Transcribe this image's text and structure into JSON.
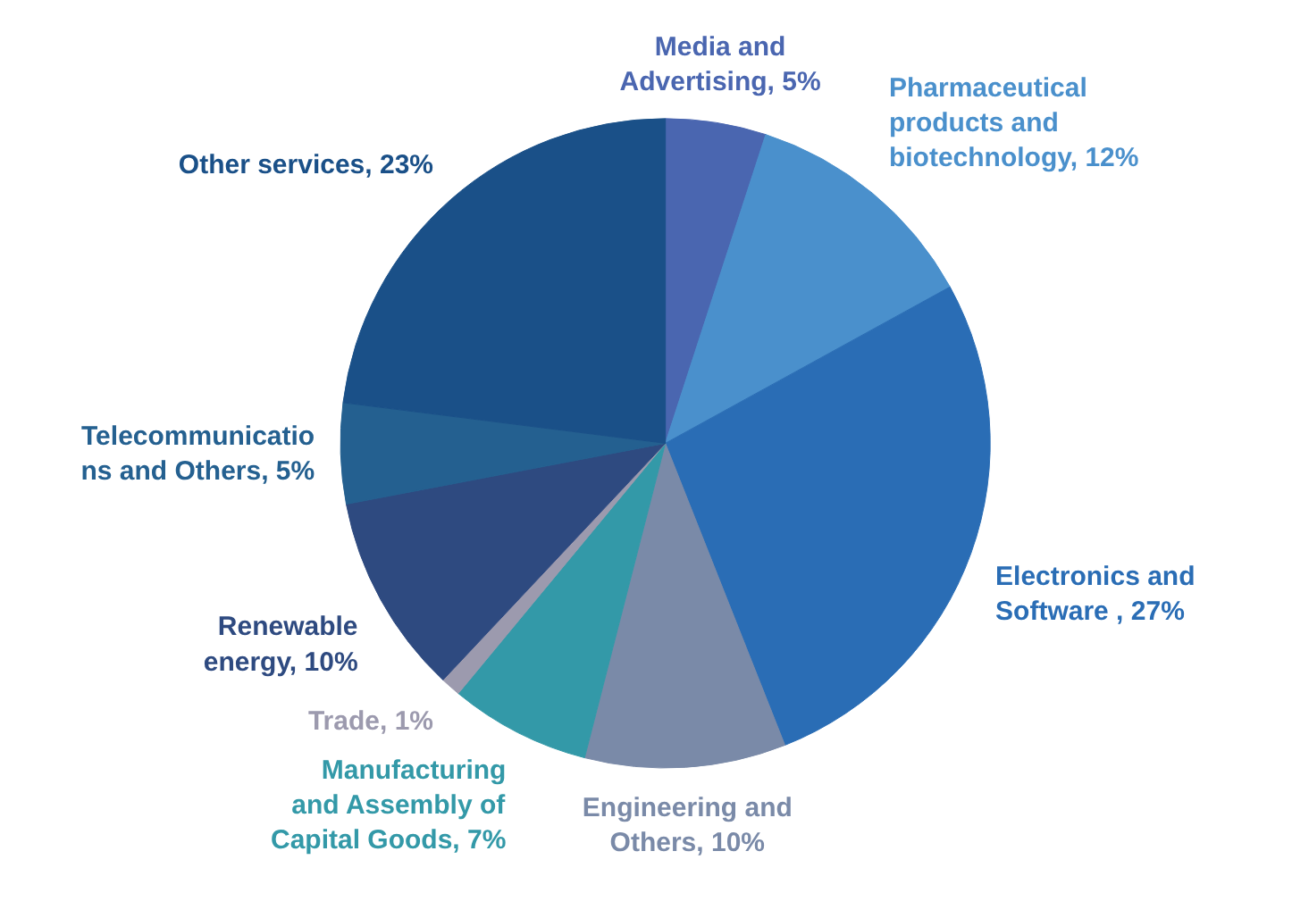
{
  "chart_data": {
    "type": "pie",
    "categories": [
      "Media and\nAdvertising",
      "Pharmaceutical\nproducts and\nbiotechnology",
      "Electronics and\nSoftware ",
      "Engineering and\nOthers",
      "Manufacturing\nand Assembly of\nCapital Goods",
      "Trade",
      "Renewable\nenergy",
      "Telecommunicatio\nns and Others",
      "Other services"
    ],
    "values": [
      5,
      12,
      27,
      10,
      7,
      1,
      10,
      5,
      23
    ],
    "value_labels": [
      "5%",
      "12%",
      "27%",
      "10%",
      "7%",
      "1%",
      "10%",
      "5%",
      "23%"
    ],
    "colors": [
      "#4a66b0",
      "#4a90cc",
      "#2a6db5",
      "#7a8aa8",
      "#3399a8",
      "#9c9aae",
      "#2e4a80",
      "#246090",
      "#1a5088"
    ],
    "data_labels": true
  }
}
